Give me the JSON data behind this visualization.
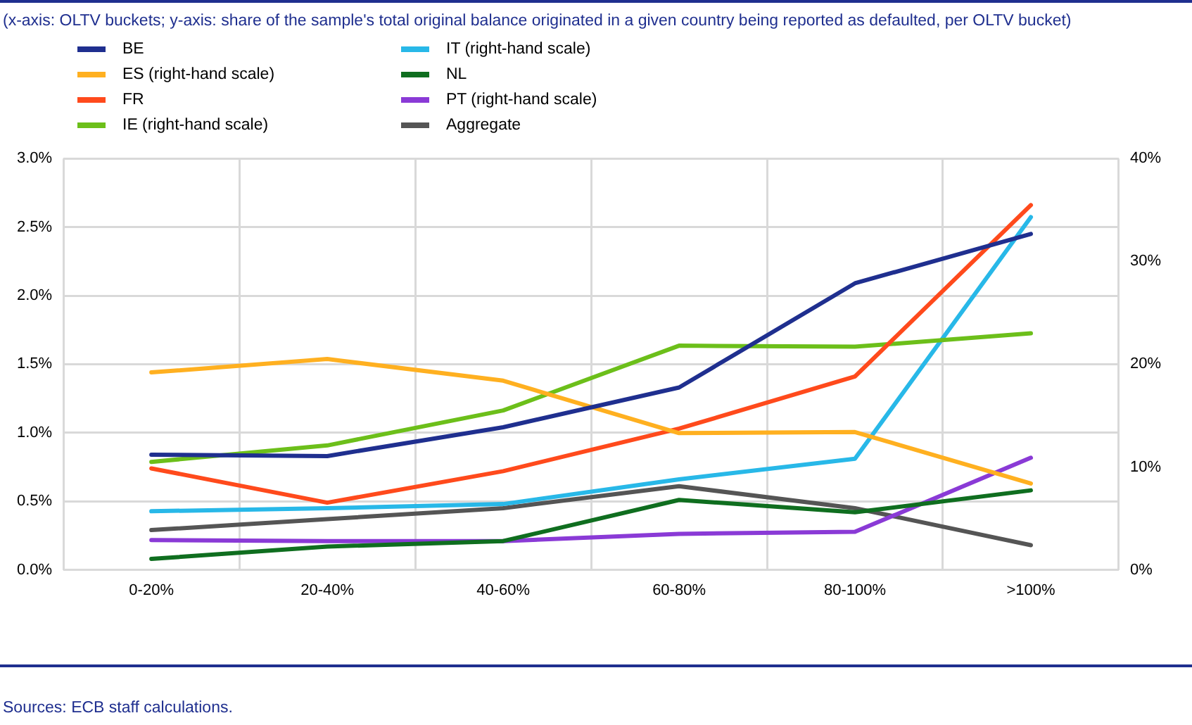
{
  "chart_data": {
    "type": "line",
    "subtitle": "(x-axis: OLTV buckets; y-axis: share of the sample's total original balance originated in a given country being reported as defaulted, per OLTV bucket)",
    "categories": [
      "0-20%",
      "20-40%",
      "40-60%",
      "60-80%",
      "80-100%",
      ">100%"
    ],
    "series": [
      {
        "name": "BE",
        "color": "#1f2f8f",
        "values": [
          0.84,
          0.83,
          1.04,
          1.33,
          2.09,
          2.45
        ]
      },
      {
        "name": "ES (right-hand scale)",
        "color": "#ffb020",
        "axis": "y2",
        "values": [
          19.2,
          20.5,
          18.4,
          13.3,
          13.4,
          8.4
        ]
      },
      {
        "name": "FR",
        "color": "#ff4a1c",
        "values": [
          0.74,
          0.49,
          0.72,
          1.03,
          1.41,
          2.66
        ]
      },
      {
        "name": "IE (right-hand scale)",
        "color": "#6cbf1a",
        "axis": "y2",
        "values": [
          10.5,
          12.1,
          15.5,
          21.8,
          21.7,
          23.0
        ]
      },
      {
        "name": "IT (right-hand scale)",
        "color": "#28b8e8",
        "axis": "y2",
        "values": [
          5.7,
          6.0,
          6.4,
          8.8,
          10.8,
          34.3
        ]
      },
      {
        "name": "NL",
        "color": "#0f6e1f",
        "values": [
          0.08,
          0.17,
          0.21,
          0.51,
          0.42,
          0.58
        ]
      },
      {
        "name": "PT (right-hand scale)",
        "color": "#8a3ad6",
        "axis": "y2",
        "values": [
          2.9,
          2.8,
          2.8,
          3.5,
          3.7,
          10.9
        ]
      },
      {
        "name": "Aggregate",
        "color": "#555555",
        "values": [
          0.29,
          0.37,
          0.45,
          0.61,
          0.45,
          0.18
        ]
      }
    ],
    "ylim": [
      0,
      3
    ],
    "yticks": [
      {
        "value": 0,
        "label": "0.0%"
      },
      {
        "value": 0.5,
        "label": "0.5%"
      },
      {
        "value": 1,
        "label": "1.0%"
      },
      {
        "value": 1.5,
        "label": "1.5%"
      },
      {
        "value": 2,
        "label": "2.0%"
      },
      {
        "value": 2.5,
        "label": "2.5%"
      },
      {
        "value": 3,
        "label": "3.0%"
      }
    ],
    "y2lim": [
      0,
      40
    ],
    "y2ticks": [
      {
        "value": 0,
        "label": "0%"
      },
      {
        "value": 10,
        "label": "10%"
      },
      {
        "value": 20,
        "label": "20%"
      },
      {
        "value": 30,
        "label": "30%"
      },
      {
        "value": 40,
        "label": "40%"
      }
    ],
    "grid": true,
    "legend": "top left",
    "marker": "none",
    "line_style": "solid",
    "annotations": [
      "Sources: ECB staff calculations."
    ]
  }
}
